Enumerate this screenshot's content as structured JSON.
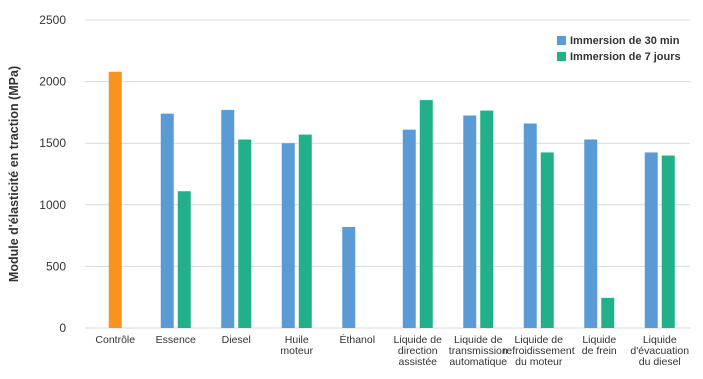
{
  "chart_data": {
    "type": "bar",
    "title": "",
    "xlabel": "",
    "ylabel": "Module d'élasticité en traction (MPa)",
    "ylim": [
      0,
      2500
    ],
    "yticks": [
      0,
      500,
      1000,
      1500,
      2000,
      2500
    ],
    "grid": true,
    "legend_position": "top-right",
    "categories": [
      [
        "Contrôle"
      ],
      [
        "Essence"
      ],
      [
        "Diesel"
      ],
      [
        "Huile",
        "moteur"
      ],
      [
        "Éthanol"
      ],
      [
        "Liquide de",
        "direction",
        "assistée"
      ],
      [
        "Liquide de",
        "transmission",
        "automatique"
      ],
      [
        "Liquide de",
        "refroidissement",
        "du moteur"
      ],
      [
        "Liquide",
        "de frein"
      ],
      [
        "Liquide",
        "d'évacuation",
        "du diesel"
      ]
    ],
    "control": {
      "category_index": 0,
      "value": 2080,
      "color": "#F7931E"
    },
    "series": [
      {
        "name": "Immersion de 30 min",
        "color": "#5B9BD5",
        "values": [
          null,
          1740,
          1770,
          1500,
          820,
          1610,
          1725,
          1660,
          1530,
          1425
        ]
      },
      {
        "name": "Immersion de 7 jours",
        "color": "#21B08A",
        "values": [
          null,
          1110,
          1530,
          1570,
          null,
          1850,
          1765,
          1425,
          245,
          1400
        ]
      }
    ],
    "colors": {
      "grid": "#D9D9D9",
      "text": "#333333"
    }
  }
}
